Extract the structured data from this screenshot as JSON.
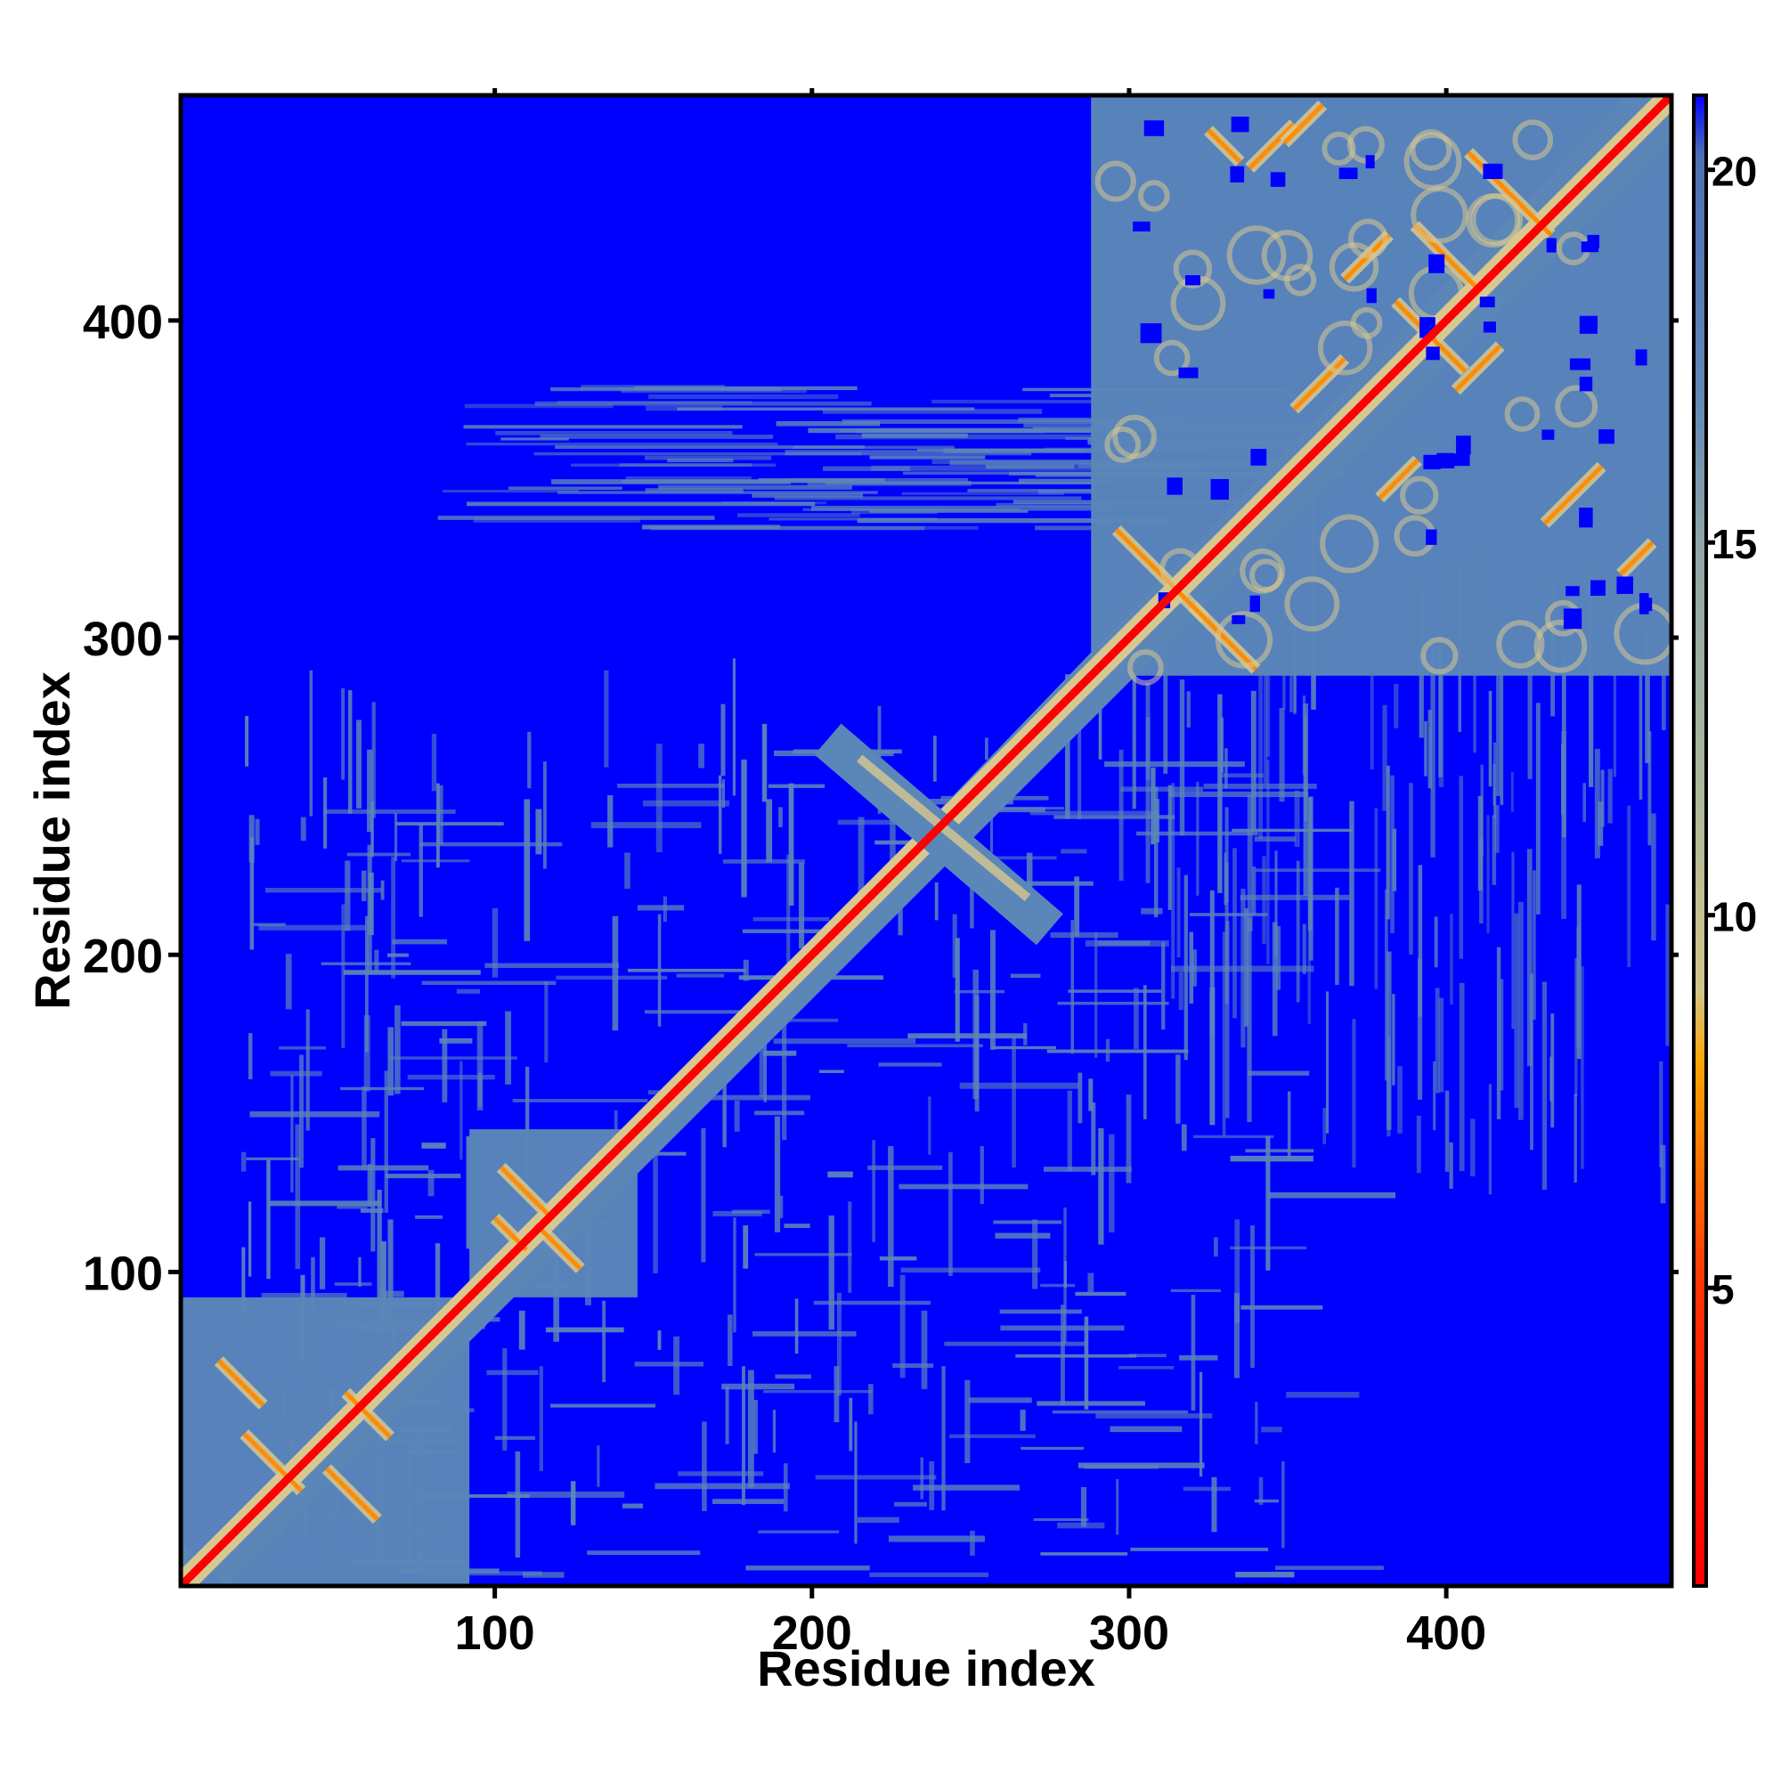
{
  "chart_data": {
    "type": "heatmap",
    "title": "",
    "xlabel": "Residue index",
    "ylabel": "Residue index",
    "xlim": [
      1,
      471
    ],
    "ylim": [
      1,
      471
    ],
    "xticks": [
      100,
      200,
      300,
      400
    ],
    "yticks": [
      100,
      200,
      300,
      400
    ],
    "grid": false,
    "colorbar": {
      "range": [
        1,
        21
      ],
      "ticks": [
        5,
        10,
        15,
        20
      ],
      "stops": [
        {
          "value": 1,
          "color": "#ff0000"
        },
        {
          "value": 5,
          "color": "#ff3300"
        },
        {
          "value": 8,
          "color": "#ffa500"
        },
        {
          "value": 9,
          "color": "#d2c58a"
        },
        {
          "value": 12,
          "color": "#a8b79b"
        },
        {
          "value": 15,
          "color": "#8fa6a8"
        },
        {
          "value": 17,
          "color": "#5f88b6"
        },
        {
          "value": 20.2,
          "color": "#4f6fb4"
        },
        {
          "value": 21,
          "color": "#0000ff"
        }
      ]
    },
    "colors": {
      "background_far": "#0000ff",
      "mid_distance": "#5b86b8",
      "near_distance": "#d8c890",
      "contact": "#ff8c00",
      "diagonal": "#ff0000"
    },
    "blocks": [
      {
        "region": [
          1,
          90
        ],
        "level": "mid-distance domain with contact patches"
      },
      {
        "region": [
          95,
          140
        ],
        "level": "mid-distance domain with contact patches"
      },
      {
        "region": [
          290,
          471
        ],
        "level": "mid-distance domain with contact patches"
      }
    ],
    "cross_features": [
      {
        "center": [
          245,
          245
        ],
        "orientation": "anti-diagonal",
        "span": [
          210,
          275
        ]
      }
    ]
  }
}
